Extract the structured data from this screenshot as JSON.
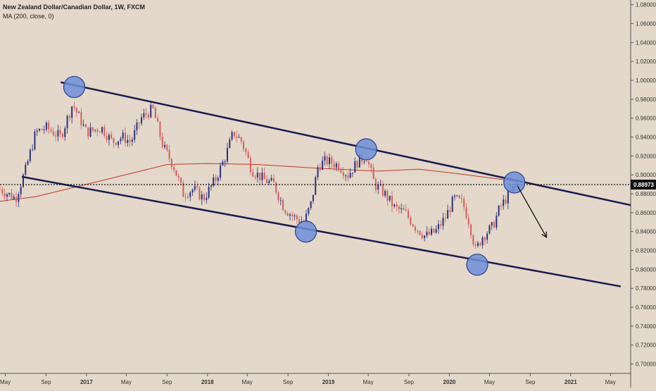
{
  "header": {
    "symbol_title": "New Zealand Dollar/Canadian Dollar, 1W, FXCM",
    "indicator": "MA (200, close, 0)"
  },
  "chart_data": {
    "type": "candlestick",
    "interval": "1W",
    "y_axis": {
      "ylim": [
        0.69,
        1.085
      ],
      "ticks": [
        "1.08000",
        "1.06000",
        "1.04000",
        "1.02000",
        "1.00000",
        "0.98000",
        "0.96000",
        "0.94000",
        "0.92000",
        "0.90000",
        "0.88000",
        "0.86000",
        "0.84000",
        "0.82000",
        "0.80000",
        "0.78000",
        "0.76000",
        "0.74000",
        "0.72000",
        "0.70000"
      ],
      "tick_values": [
        1.08,
        1.06,
        1.04,
        1.02,
        1.0,
        0.98,
        0.96,
        0.94,
        0.92,
        0.9,
        0.88,
        0.86,
        0.84,
        0.82,
        0.8,
        0.78,
        0.76,
        0.74,
        0.72,
        0.7
      ]
    },
    "x_axis": {
      "xlim": [
        "2016-04-15",
        "2021-07-01"
      ],
      "ticks": [
        {
          "label": "May",
          "date": "2016-05-01",
          "bold": false
        },
        {
          "label": "Sep",
          "date": "2016-09-01",
          "bold": false
        },
        {
          "label": "2017",
          "date": "2017-01-01",
          "bold": true
        },
        {
          "label": "May",
          "date": "2017-05-01",
          "bold": false
        },
        {
          "label": "Sep",
          "date": "2017-09-01",
          "bold": false
        },
        {
          "label": "2018",
          "date": "2018-01-01",
          "bold": true
        },
        {
          "label": "May",
          "date": "2018-05-01",
          "bold": false
        },
        {
          "label": "Sep",
          "date": "2018-09-01",
          "bold": false
        },
        {
          "label": "2019",
          "date": "2019-01-01",
          "bold": true
        },
        {
          "label": "May",
          "date": "2019-05-01",
          "bold": false
        },
        {
          "label": "Sep",
          "date": "2019-09-01",
          "bold": false
        },
        {
          "label": "2020",
          "date": "2020-01-01",
          "bold": true
        },
        {
          "label": "May",
          "date": "2020-05-01",
          "bold": false
        },
        {
          "label": "Sep",
          "date": "2020-09-01",
          "bold": false
        },
        {
          "label": "2021",
          "date": "2021-01-01",
          "bold": true
        },
        {
          "label": "May",
          "date": "2021-05-01",
          "bold": false
        }
      ]
    },
    "price_path": [
      {
        "date": "2016-04-15",
        "price": 0.885
      },
      {
        "date": "2016-06-01",
        "price": 0.875
      },
      {
        "date": "2016-07-01",
        "price": 0.905
      },
      {
        "date": "2016-08-01",
        "price": 0.945
      },
      {
        "date": "2016-09-01",
        "price": 0.95
      },
      {
        "date": "2016-10-15",
        "price": 0.94
      },
      {
        "date": "2016-11-20",
        "price": 0.975
      },
      {
        "date": "2017-01-01",
        "price": 0.945
      },
      {
        "date": "2017-02-15",
        "price": 0.95
      },
      {
        "date": "2017-03-20",
        "price": 0.935
      },
      {
        "date": "2017-04-20",
        "price": 0.94
      },
      {
        "date": "2017-05-15",
        "price": 0.935
      },
      {
        "date": "2017-06-15",
        "price": 0.96
      },
      {
        "date": "2017-07-20",
        "price": 0.97
      },
      {
        "date": "2017-08-20",
        "price": 0.93
      },
      {
        "date": "2017-09-20",
        "price": 0.91
      },
      {
        "date": "2017-10-20",
        "price": 0.88
      },
      {
        "date": "2017-11-20",
        "price": 0.885
      },
      {
        "date": "2017-12-20",
        "price": 0.875
      },
      {
        "date": "2018-01-25",
        "price": 0.895
      },
      {
        "date": "2018-02-25",
        "price": 0.92
      },
      {
        "date": "2018-03-20",
        "price": 0.945
      },
      {
        "date": "2018-04-15",
        "price": 0.935
      },
      {
        "date": "2018-05-15",
        "price": 0.905
      },
      {
        "date": "2018-06-20",
        "price": 0.895
      },
      {
        "date": "2018-07-20",
        "price": 0.89
      },
      {
        "date": "2018-08-20",
        "price": 0.865
      },
      {
        "date": "2018-09-20",
        "price": 0.855
      },
      {
        "date": "2018-10-20",
        "price": 0.85
      },
      {
        "date": "2018-11-10",
        "price": 0.87
      },
      {
        "date": "2018-12-01",
        "price": 0.91
      },
      {
        "date": "2018-12-25",
        "price": 0.915
      },
      {
        "date": "2019-02-01",
        "price": 0.91
      },
      {
        "date": "2019-03-01",
        "price": 0.9
      },
      {
        "date": "2019-04-01",
        "price": 0.915
      },
      {
        "date": "2019-04-25",
        "price": 0.92
      },
      {
        "date": "2019-05-20",
        "price": 0.89
      },
      {
        "date": "2019-06-20",
        "price": 0.88
      },
      {
        "date": "2019-07-20",
        "price": 0.865
      },
      {
        "date": "2019-08-20",
        "price": 0.86
      },
      {
        "date": "2019-09-20",
        "price": 0.845
      },
      {
        "date": "2019-10-20",
        "price": 0.835
      },
      {
        "date": "2019-11-20",
        "price": 0.84
      },
      {
        "date": "2019-12-20",
        "price": 0.855
      },
      {
        "date": "2020-01-15",
        "price": 0.875
      },
      {
        "date": "2020-02-10",
        "price": 0.87
      },
      {
        "date": "2020-03-01",
        "price": 0.85
      },
      {
        "date": "2020-03-20",
        "price": 0.82
      },
      {
        "date": "2020-04-10",
        "price": 0.835
      },
      {
        "date": "2020-05-10",
        "price": 0.845
      },
      {
        "date": "2020-06-01",
        "price": 0.865
      },
      {
        "date": "2020-06-20",
        "price": 0.875
      },
      {
        "date": "2020-07-10",
        "price": 0.885
      },
      {
        "date": "2020-07-25",
        "price": 0.89
      }
    ],
    "ma_200": [
      {
        "date": "2016-04-15",
        "value": 0.872
      },
      {
        "date": "2016-08-01",
        "value": 0.877
      },
      {
        "date": "2017-01-01",
        "value": 0.89
      },
      {
        "date": "2017-06-01",
        "value": 0.903
      },
      {
        "date": "2017-09-01",
        "value": 0.911
      },
      {
        "date": "2018-01-01",
        "value": 0.912
      },
      {
        "date": "2018-06-01",
        "value": 0.911
      },
      {
        "date": "2018-12-01",
        "value": 0.907
      },
      {
        "date": "2019-06-01",
        "value": 0.904
      },
      {
        "date": "2019-10-01",
        "value": 0.906
      },
      {
        "date": "2020-02-01",
        "value": 0.901
      },
      {
        "date": "2020-07-25",
        "value": 0.893
      }
    ],
    "current_price": {
      "value": 0.88973,
      "label": "0.88973"
    },
    "channel_lines": [
      {
        "name": "upper",
        "from": {
          "date": "2016-10-15",
          "price": 0.998
        },
        "to": {
          "date": "2021-07-01",
          "price": 0.868
        }
      },
      {
        "name": "lower",
        "from": {
          "date": "2016-06-20",
          "price": 0.898
        },
        "to": {
          "date": "2021-06-01",
          "price": 0.782
        }
      }
    ],
    "touch_circles": [
      {
        "date": "2016-11-25",
        "price": 0.993
      },
      {
        "date": "2018-10-25",
        "price": 0.84
      },
      {
        "date": "2019-04-25",
        "price": 0.927
      },
      {
        "date": "2020-03-25",
        "price": 0.805
      },
      {
        "date": "2020-07-15",
        "price": 0.892
      }
    ],
    "forecast_arrow": {
      "from": {
        "date": "2020-07-25",
        "price": 0.888
      },
      "to": {
        "date": "2020-10-20",
        "price": 0.834
      }
    },
    "colors": {
      "background": "#e3d8c9",
      "up_candle": "#2b2f7a",
      "down_candle": "#d35d5d",
      "ma_line": "#c0392b",
      "channel": "#1a1a4e",
      "circle_fill": "#6d8fd8",
      "circle_stroke": "#2a3f8f",
      "price_label_bg": "#111111",
      "price_label_text": "#ffffff"
    }
  }
}
